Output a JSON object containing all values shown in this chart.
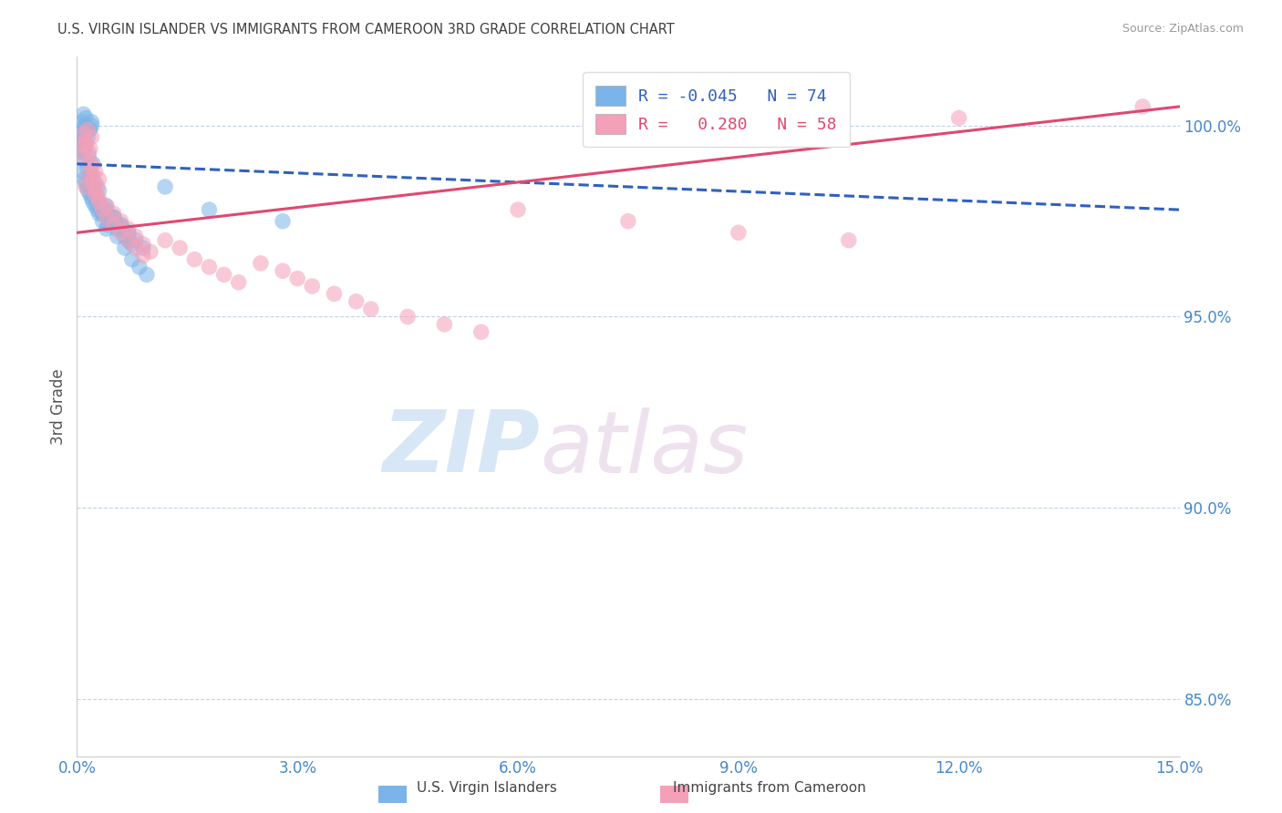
{
  "title": "U.S. VIRGIN ISLANDER VS IMMIGRANTS FROM CAMEROON 3RD GRADE CORRELATION CHART",
  "source": "Source: ZipAtlas.com",
  "ylabel": "3rd Grade",
  "xlim": [
    0.0,
    15.0
  ],
  "ylim": [
    83.5,
    101.8
  ],
  "yticks": [
    85.0,
    90.0,
    95.0,
    100.0
  ],
  "ytick_labels": [
    "85.0%",
    "90.0%",
    "95.0%",
    "100.0%"
  ],
  "xticks": [
    0.0,
    3.0,
    6.0,
    9.0,
    12.0,
    15.0
  ],
  "xtick_labels": [
    "0.0%",
    "3.0%",
    "6.0%",
    "9.0%",
    "12.0%",
    "15.0%"
  ],
  "legend_labels": [
    "U.S. Virgin Islanders",
    "Immigrants from Cameroon"
  ],
  "legend_R": [
    "-0.045",
    " 0.280"
  ],
  "legend_N": [
    "74",
    "58"
  ],
  "blue_color": "#7ab4e8",
  "pink_color": "#f4a0b8",
  "blue_line_color": "#3060c0",
  "pink_line_color": "#e04870",
  "background_color": "#ffffff",
  "grid_color": "#c0d4e8",
  "title_color": "#404040",
  "axis_label_color": "#4488cc",
  "blue_scatter_x": [
    0.05,
    0.07,
    0.09,
    0.1,
    0.12,
    0.15,
    0.08,
    0.1,
    0.12,
    0.15,
    0.18,
    0.2,
    0.06,
    0.09,
    0.12,
    0.16,
    0.2,
    0.08,
    0.12,
    0.16,
    0.22,
    0.1,
    0.14,
    0.18,
    0.12,
    0.08,
    0.1,
    0.14,
    0.18,
    0.22,
    0.28,
    0.15,
    0.2,
    0.25,
    0.3,
    0.35,
    0.4,
    0.5,
    0.6,
    0.7,
    0.8,
    0.9,
    0.2,
    0.25,
    0.3,
    0.4,
    0.5,
    0.6,
    0.7,
    0.25,
    0.3,
    0.35,
    0.45,
    0.55,
    0.65,
    0.75,
    1.2,
    0.4,
    0.5,
    0.6,
    0.7,
    2.8,
    0.35,
    0.18,
    0.22,
    0.28,
    0.35,
    0.42,
    0.55,
    0.65,
    0.75,
    0.85,
    0.95,
    1.8
  ],
  "blue_scatter_y": [
    99.8,
    100.1,
    100.3,
    100.0,
    100.2,
    99.9,
    99.6,
    99.8,
    100.0,
    99.7,
    99.9,
    100.1,
    99.4,
    99.6,
    99.8,
    99.9,
    100.0,
    99.3,
    99.5,
    99.2,
    99.0,
    99.1,
    98.9,
    98.7,
    98.5,
    98.8,
    98.6,
    98.4,
    98.2,
    98.0,
    97.8,
    98.3,
    98.1,
    97.9,
    97.7,
    97.5,
    97.3,
    97.6,
    97.4,
    97.2,
    97.0,
    96.8,
    98.7,
    98.5,
    98.3,
    97.8,
    97.6,
    97.4,
    97.2,
    98.2,
    98.0,
    97.8,
    97.5,
    97.3,
    97.1,
    96.9,
    98.4,
    97.9,
    97.6,
    97.3,
    97.0,
    97.5,
    97.7,
    98.6,
    98.3,
    98.0,
    97.7,
    97.4,
    97.1,
    96.8,
    96.5,
    96.3,
    96.1,
    97.8
  ],
  "pink_scatter_x": [
    0.08,
    0.1,
    0.12,
    0.15,
    0.18,
    0.2,
    0.08,
    0.12,
    0.16,
    0.2,
    0.25,
    0.3,
    0.12,
    0.16,
    0.2,
    0.25,
    0.3,
    0.35,
    0.4,
    0.5,
    0.6,
    0.7,
    0.8,
    0.9,
    0.25,
    0.3,
    0.4,
    0.5,
    0.6,
    0.7,
    0.8,
    0.9,
    1.0,
    1.2,
    1.4,
    1.6,
    1.8,
    2.0,
    2.2,
    2.5,
    2.8,
    3.0,
    3.2,
    3.5,
    3.8,
    4.0,
    4.5,
    5.0,
    5.5,
    6.0,
    7.5,
    9.0,
    10.5,
    12.0,
    14.5,
    0.18,
    0.22,
    0.28
  ],
  "pink_scatter_y": [
    99.5,
    99.8,
    99.6,
    99.9,
    99.4,
    99.7,
    99.2,
    99.5,
    99.3,
    99.0,
    98.8,
    98.6,
    98.4,
    98.7,
    98.5,
    98.2,
    98.0,
    97.8,
    97.6,
    97.4,
    97.2,
    97.0,
    96.8,
    96.6,
    98.3,
    98.1,
    97.9,
    97.7,
    97.5,
    97.3,
    97.1,
    96.9,
    96.7,
    97.0,
    96.8,
    96.5,
    96.3,
    96.1,
    95.9,
    96.4,
    96.2,
    96.0,
    95.8,
    95.6,
    95.4,
    95.2,
    95.0,
    94.8,
    94.6,
    97.8,
    97.5,
    97.2,
    97.0,
    100.2,
    100.5,
    99.0,
    98.7,
    98.4
  ],
  "blue_trend_x": [
    0.0,
    15.0
  ],
  "blue_trend_y": [
    99.0,
    97.8
  ],
  "pink_trend_x": [
    0.0,
    15.0
  ],
  "pink_trend_y": [
    97.2,
    100.5
  ],
  "watermark_zip": "ZIP",
  "watermark_atlas": "atlas",
  "figsize": [
    14.06,
    8.92
  ],
  "dpi": 100
}
